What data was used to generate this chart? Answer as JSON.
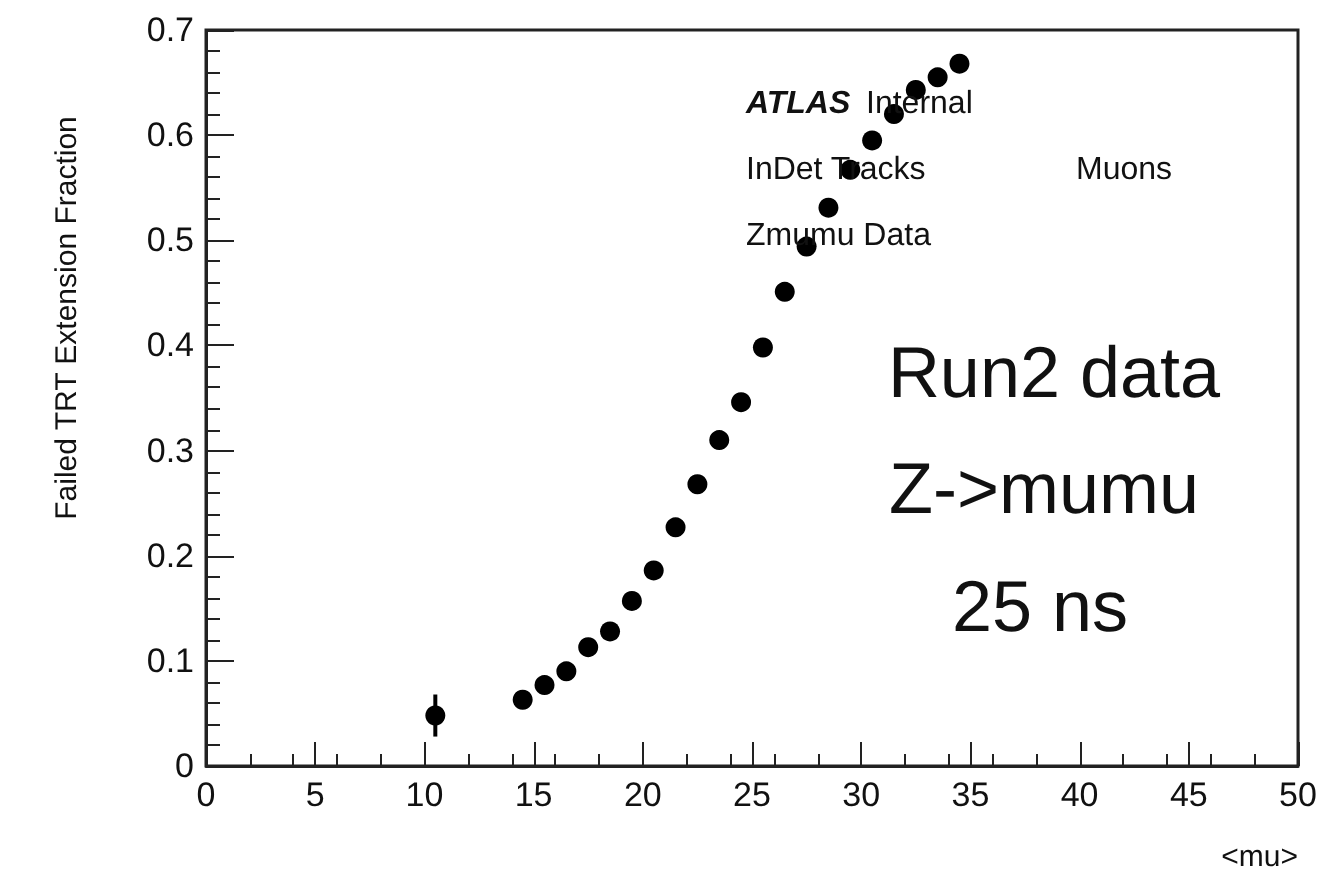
{
  "chart_data": {
    "type": "scatter",
    "xlabel": "<mu>",
    "ylabel": "Failed TRT Extension Fraction",
    "x": [
      10.5,
      14.5,
      15.5,
      16.5,
      17.5,
      18.5,
      19.5,
      20.5,
      21.5,
      22.5,
      23.5,
      24.5,
      25.5,
      26.5,
      27.5,
      28.5,
      29.5,
      30.5,
      31.5,
      32.5,
      33.5,
      34.5
    ],
    "values": [
      0.048,
      0.063,
      0.077,
      0.09,
      0.113,
      0.128,
      0.157,
      0.186,
      0.227,
      0.268,
      0.31,
      0.346,
      0.398,
      0.451,
      0.494,
      0.531,
      0.567,
      0.595,
      0.62,
      0.643,
      0.655,
      0.668
    ],
    "errors": [
      0.02,
      null,
      null,
      null,
      null,
      null,
      null,
      null,
      null,
      null,
      null,
      null,
      null,
      null,
      null,
      null,
      null,
      null,
      null,
      null,
      null,
      null
    ],
    "color": "#000000",
    "marker": "circle",
    "xlim": [
      0,
      50
    ],
    "xticks": [
      0,
      5,
      10,
      15,
      20,
      25,
      30,
      35,
      40,
      45,
      50
    ],
    "ylim": [
      0,
      0.7
    ],
    "yticks": [
      0,
      0.1,
      0.2,
      0.3,
      0.4,
      0.5,
      0.6,
      0.7
    ],
    "grid": false,
    "annotations": [
      "ATLAS",
      "Internal",
      "InDet Tracks",
      "Muons",
      "Zmumu Data",
      "Run2 data",
      "Z->mumu",
      "25 ns"
    ]
  }
}
